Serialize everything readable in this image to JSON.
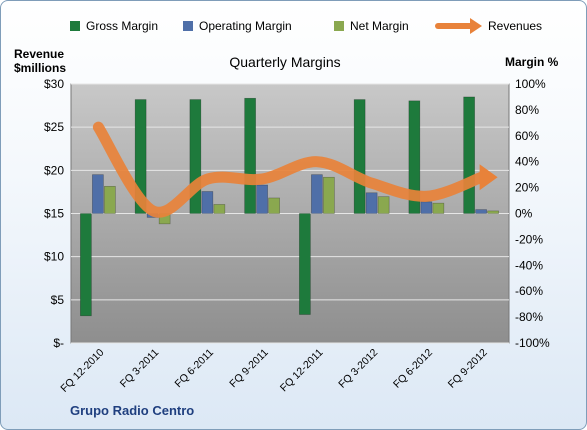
{
  "chart_data": {
    "type": "bar",
    "title": "Quarterly Margins",
    "company": "Grupo Radio Centro",
    "y_left_label": [
      "Revenue",
      "$millions"
    ],
    "y_right_label": "Margin %",
    "y_left_range": [
      0,
      30
    ],
    "y_right_range": [
      -100,
      100
    ],
    "y_left_ticks": [
      "$-",
      "$5",
      "$10",
      "$15",
      "$20",
      "$25",
      "$30"
    ],
    "y_right_ticks": [
      "-100%",
      "-80%",
      "-60%",
      "-40%",
      "-20%",
      "0%",
      "20%",
      "40%",
      "60%",
      "80%",
      "100%"
    ],
    "categories": [
      "FQ 12-2010",
      "FQ 3-2011",
      "FQ 6-2011",
      "FQ 9-2011",
      "FQ 12-2011",
      "FQ 3-2012",
      "FQ 6-2012",
      "FQ 9-2012"
    ],
    "series": [
      {
        "name": "Gross Margin",
        "axis": "right",
        "color": "#1e7a3c",
        "values": [
          -79,
          88,
          88,
          89,
          -78,
          88,
          87,
          90
        ]
      },
      {
        "name": "Operating Margin",
        "axis": "right",
        "color": "#4f6fa8",
        "values": [
          30,
          -3,
          17,
          22,
          30,
          16,
          9,
          3
        ]
      },
      {
        "name": "Net Margin",
        "axis": "right",
        "color": "#8aa84f",
        "values": [
          21,
          -8,
          7,
          12,
          28,
          13,
          8,
          2
        ]
      },
      {
        "name": "Revenues",
        "axis": "left",
        "color": "#e8823a",
        "values": [
          25,
          15.3,
          19,
          19,
          21,
          18.5,
          17,
          19.2
        ]
      }
    ],
    "grid": true,
    "legend_position": "top"
  }
}
